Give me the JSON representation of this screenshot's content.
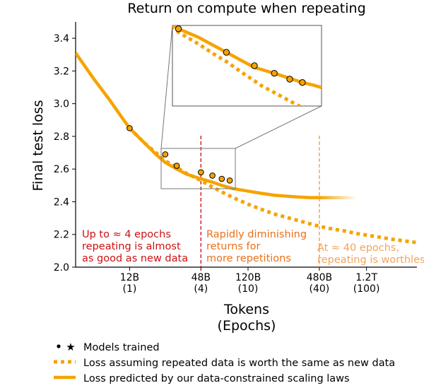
{
  "chart_data": {
    "type": "line",
    "title": "Return on compute when repeating",
    "xlabel": "Tokens",
    "xlabel2": "(Epochs)",
    "ylabel": "Final test loss",
    "xscale": "log",
    "xlim": [
      4.2,
      3200
    ],
    "ylim": [
      2.0,
      3.5
    ],
    "yticks": [
      2.0,
      2.2,
      2.4,
      2.6,
      2.8,
      3.0,
      3.2,
      3.4
    ],
    "ytick_labels": [
      "2.0",
      "2.2",
      "2.4",
      "2.6",
      "2.8",
      "3.0",
      "3.2",
      "3.4"
    ],
    "xticks": [
      {
        "x": 12,
        "label": "12B",
        "epochs": "(1)"
      },
      {
        "x": 48,
        "label": "48B",
        "epochs": "(4)"
      },
      {
        "x": 120,
        "label": "120B",
        "epochs": "(10)"
      },
      {
        "x": 480,
        "label": "480B",
        "epochs": "(40)"
      },
      {
        "x": 1200,
        "label": "1.2T",
        "epochs": "(100)"
      }
    ],
    "series": [
      {
        "name": "Loss predicted by our data-constrained scaling laws",
        "style": "solid",
        "color": "#f5a300",
        "x": [
          4.2,
          6,
          8,
          10,
          12,
          16,
          20,
          24,
          30,
          36,
          48,
          60,
          72,
          90,
          120,
          160,
          200,
          300,
          400,
          480,
          600,
          800,
          1000
        ],
        "y": [
          3.31,
          3.15,
          3.03,
          2.93,
          2.85,
          2.76,
          2.69,
          2.64,
          2.6,
          2.57,
          2.54,
          2.52,
          2.5,
          2.48,
          2.465,
          2.45,
          2.44,
          2.43,
          2.425,
          2.425,
          2.425,
          2.425,
          2.425
        ]
      },
      {
        "name": "Loss assuming repeated data is worth the same as new data",
        "style": "dotted",
        "color": "#f5a300",
        "x": [
          12,
          16,
          20,
          24,
          30,
          36,
          48,
          60,
          72,
          90,
          120,
          160,
          200,
          300,
          400,
          480,
          600,
          800,
          1000,
          1500,
          2000,
          3200
        ],
        "y": [
          2.85,
          2.76,
          2.7,
          2.65,
          2.61,
          2.575,
          2.53,
          2.49,
          2.46,
          2.425,
          2.385,
          2.35,
          2.325,
          2.29,
          2.265,
          2.25,
          2.235,
          2.22,
          2.205,
          2.185,
          2.17,
          2.15
        ]
      }
    ],
    "models_trained": {
      "x": [
        12,
        24,
        30,
        48,
        60,
        72,
        84
      ],
      "y": [
        2.85,
        2.69,
        2.62,
        2.58,
        2.56,
        2.54,
        2.53
      ]
    },
    "vlines": [
      {
        "x": 48,
        "color": "#d62222"
      },
      {
        "x": 480,
        "color": "#f5a35a"
      }
    ],
    "annotations": [
      {
        "lines": [
          "Up to ≈ 4 epochs",
          "repeating is almost",
          "as good as new data"
        ],
        "color": "#cc1111"
      },
      {
        "lines": [
          "Rapidly diminishing",
          "returns for",
          "more repetitions"
        ],
        "color": "#e8711a"
      },
      {
        "lines": [
          "At ≈ 40 epochs,",
          "repeating is worthless"
        ],
        "color": "#f5a35a"
      }
    ],
    "inset": {
      "x": [
        12,
        24,
        30,
        48,
        60,
        72,
        84
      ],
      "solid_y": [
        3.4,
        3.26,
        3.18,
        3.14,
        3.1,
        3.08
      ],
      "dotted_y": [
        3.37,
        3.2,
        3.06,
        2.98
      ]
    },
    "legend": {
      "placement": "bottom",
      "entries": [
        {
          "label": "Models trained",
          "marker": "• ★"
        },
        {
          "label": "Loss assuming repeated data is worth the same as new data",
          "marker": "dotted"
        },
        {
          "label": "Loss predicted by our data-constrained scaling laws",
          "marker": "solid"
        }
      ]
    },
    "colors": {
      "accent": "#f5a300",
      "red": "#d62222",
      "light_orange": "#f5a35a"
    }
  }
}
